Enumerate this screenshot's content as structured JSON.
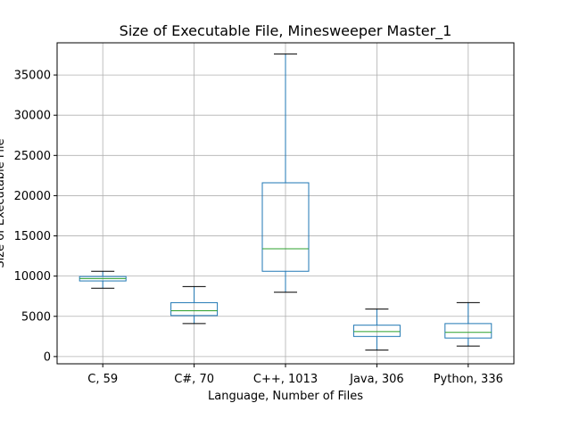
{
  "chart_data": {
    "type": "box",
    "title": "Size of Executable File, Minesweeper Master_1",
    "xlabel": "Language, Number of Files",
    "ylabel": "Size of Executable File",
    "ylim": [
      -900,
      39000
    ],
    "yticks": [
      0,
      5000,
      10000,
      15000,
      20000,
      25000,
      30000,
      35000
    ],
    "grid": true,
    "categories": [
      "C, 59",
      "C#, 70",
      "C++, 1013",
      "Java, 306",
      "Python, 336"
    ],
    "boxes": [
      {
        "category": "C, 59",
        "whisker_low": 8500,
        "q1": 9400,
        "median": 9700,
        "q3": 9950,
        "whisker_high": 10600
      },
      {
        "category": "C#, 70",
        "whisker_low": 4100,
        "q1": 5100,
        "median": 5700,
        "q3": 6700,
        "whisker_high": 8700
      },
      {
        "category": "C++, 1013",
        "whisker_low": 8000,
        "q1": 10600,
        "median": 13400,
        "q3": 21600,
        "whisker_high": 37600
      },
      {
        "category": "Java, 306",
        "whisker_low": 800,
        "q1": 2500,
        "median": 3100,
        "q3": 3900,
        "whisker_high": 5900
      },
      {
        "category": "Python, 336",
        "whisker_low": 1300,
        "q1": 2300,
        "median": 3000,
        "q3": 4100,
        "whisker_high": 6700
      }
    ],
    "colors": {
      "box": "#1f77b4",
      "median": "#2ca02c",
      "whisker_cap": "#000000",
      "grid": "#b0b0b0"
    }
  }
}
